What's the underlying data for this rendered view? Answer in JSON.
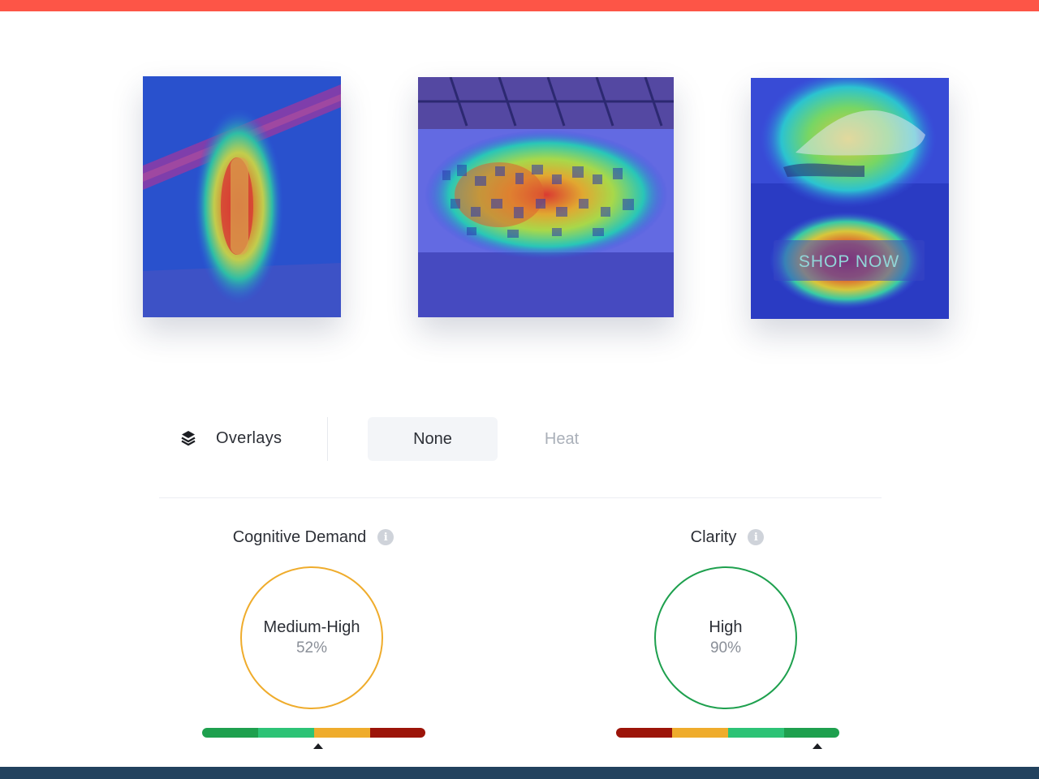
{
  "colors": {
    "accent_top": "#fd5547",
    "footer": "#22425e",
    "low_good": "#1ea04e",
    "mid_good": "#2dc376",
    "medium": "#efac2c",
    "high_bad": "#9c1409"
  },
  "thumbnails": [
    {
      "name": "woman-by-wall",
      "overlay": "heat"
    },
    {
      "name": "gallery-wall",
      "overlay": "heat"
    },
    {
      "name": "sneaker-ad",
      "overlay": "heat",
      "cta_text": "SHOP NOW"
    }
  ],
  "overlays": {
    "icon": "layers-icon",
    "label": "Overlays",
    "options": [
      "None",
      "Heat"
    ],
    "selected": "None"
  },
  "metrics": [
    {
      "title": "Cognitive Demand",
      "info_icon": "info-icon",
      "level": "Medium-High",
      "percent": "52%",
      "ring_color": "#efac2c",
      "scale_colors": [
        "#1ea04e",
        "#2dc376",
        "#efac2c",
        "#9c1409"
      ],
      "marker_fraction": 0.52
    },
    {
      "title": "Clarity",
      "info_icon": "info-icon",
      "level": "High",
      "percent": "90%",
      "ring_color": "#1ea04e",
      "scale_colors": [
        "#9c1409",
        "#efac2c",
        "#2dc376",
        "#1ea04e"
      ],
      "marker_fraction": 0.9
    }
  ]
}
